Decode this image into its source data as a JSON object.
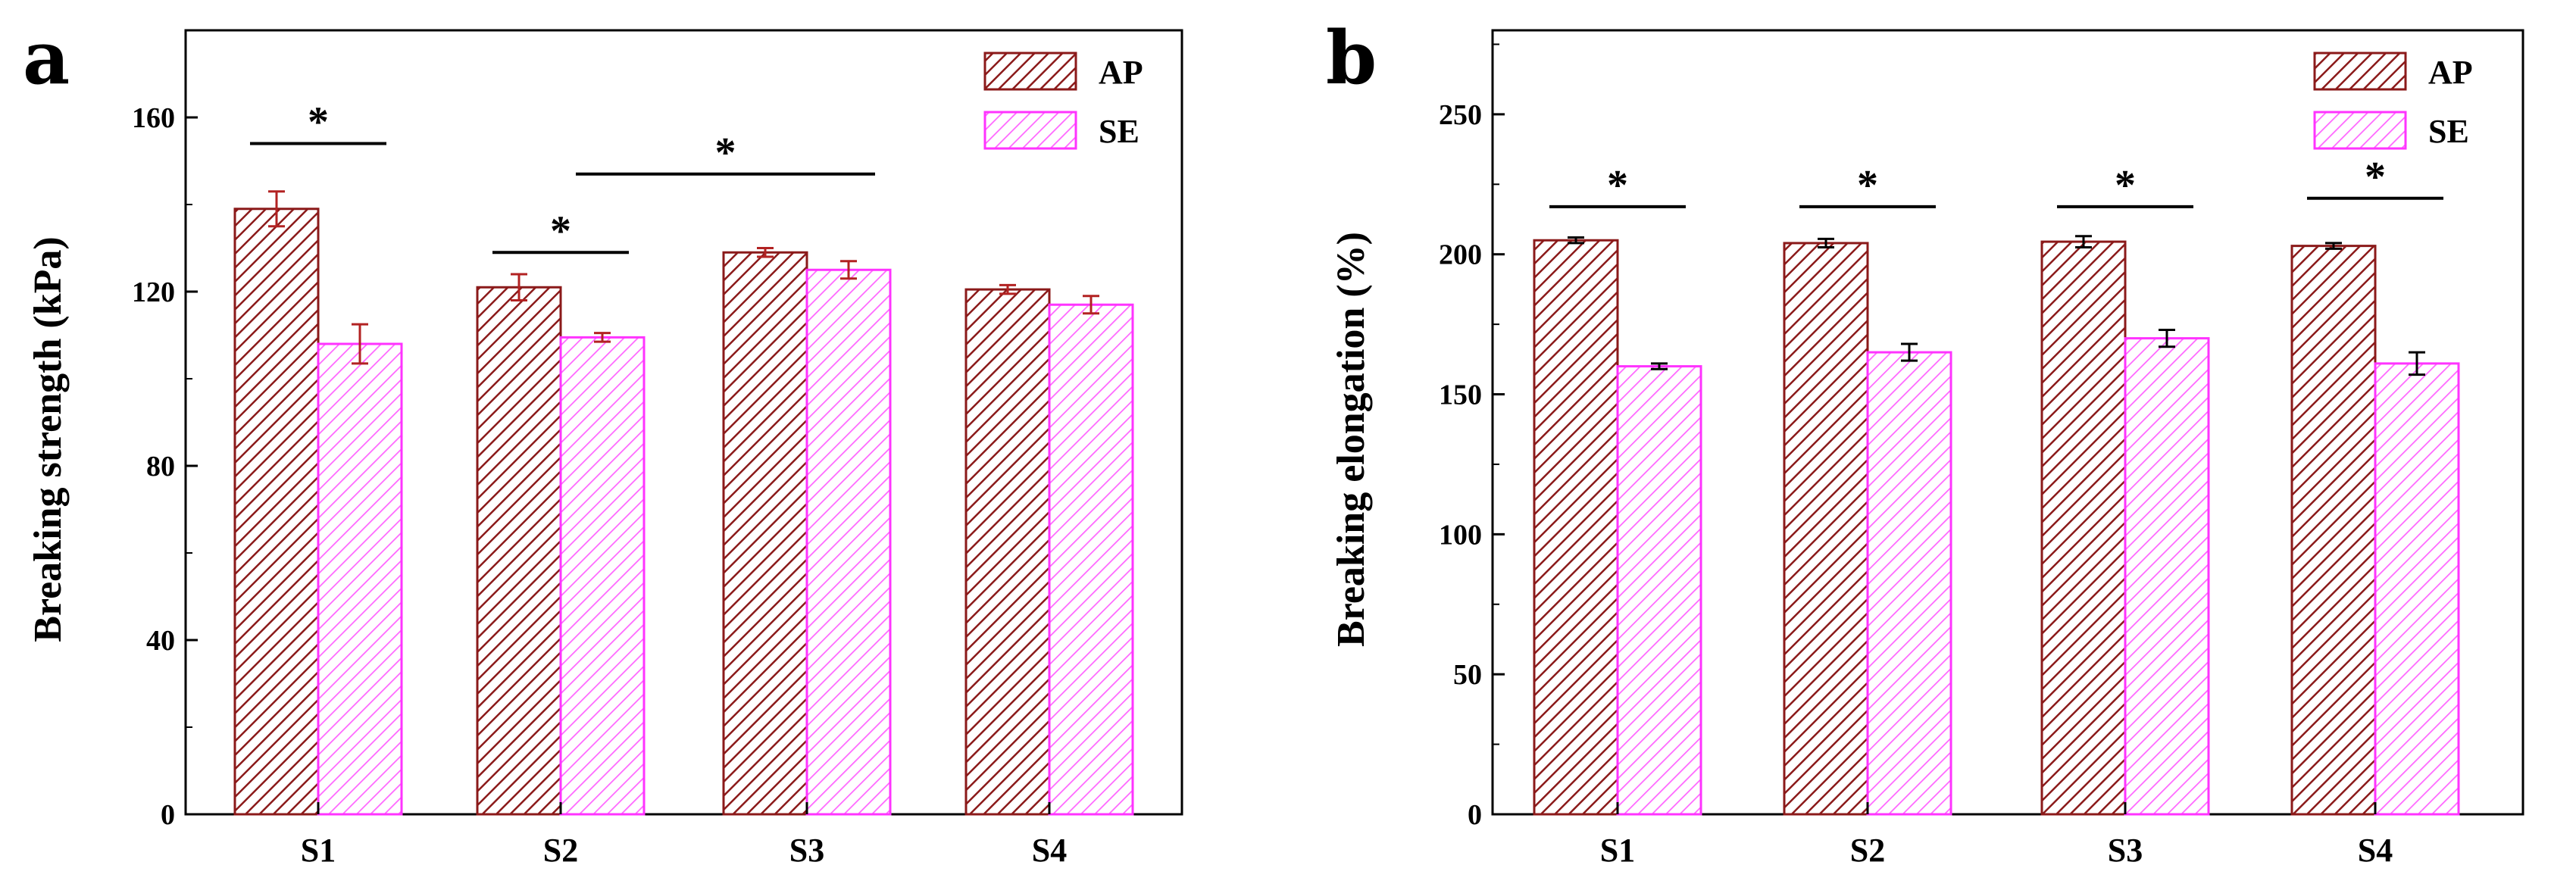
{
  "colors": {
    "ap_stroke": "#8b1a1a",
    "ap_hatch": "#8b1a1a",
    "ap_error": "#b22222",
    "se_stroke": "#ff33ff",
    "se_hatch": "#ff66ff",
    "axis": "#000000"
  },
  "chart_data": [
    {
      "type": "bar",
      "panel_label": "a",
      "categories": [
        "S1",
        "S2",
        "S3",
        "S4"
      ],
      "series": [
        {
          "name": "AP",
          "values": [
            139,
            121,
            129,
            120.5
          ],
          "errors": [
            4,
            3,
            1,
            1
          ]
        },
        {
          "name": "SE",
          "values": [
            108,
            109.5,
            125,
            117
          ],
          "errors": [
            4.5,
            1,
            2,
            2
          ]
        }
      ],
      "xlabel": "",
      "ylabel": "Breaking strength (kPa)",
      "ylim": [
        0,
        180
      ],
      "yticks": [
        0,
        40,
        80,
        120,
        160
      ],
      "ytick_labels": [
        "0",
        "40",
        "80",
        "120",
        "160"
      ],
      "legend_position": "top-right",
      "significance": [
        {
          "label": "*",
          "from": "S1-AP",
          "to": "S1-SE",
          "level": 154
        },
        {
          "label": "*",
          "from": "S2-AP",
          "to": "S2-SE",
          "level": 129
        },
        {
          "label": "*",
          "from": "S2-SE",
          "to": "S3-SE",
          "level": 147
        }
      ]
    },
    {
      "type": "bar",
      "panel_label": "b",
      "categories": [
        "S1",
        "S2",
        "S3",
        "S4"
      ],
      "series": [
        {
          "name": "AP",
          "values": [
            205,
            204,
            204.5,
            203
          ],
          "errors": [
            1,
            1.5,
            2,
            1
          ]
        },
        {
          "name": "SE",
          "values": [
            160,
            165,
            170,
            161
          ],
          "errors": [
            1,
            3,
            3,
            4
          ]
        }
      ],
      "xlabel": "",
      "ylabel": "Breaking elongation (%)",
      "ylim": [
        0,
        280
      ],
      "yticks": [
        0,
        50,
        100,
        150,
        200,
        250
      ],
      "ytick_labels": [
        "0",
        "50",
        "100",
        "150",
        "200",
        "250"
      ],
      "legend_position": "top-right",
      "significance": [
        {
          "label": "*",
          "from": "S1-AP",
          "to": "S1-SE",
          "level": 217
        },
        {
          "label": "*",
          "from": "S2-AP",
          "to": "S2-SE",
          "level": 217
        },
        {
          "label": "*",
          "from": "S3-AP",
          "to": "S3-SE",
          "level": 217
        },
        {
          "label": "*",
          "from": "S4-AP",
          "to": "S4-SE",
          "level": 220
        }
      ]
    }
  ]
}
